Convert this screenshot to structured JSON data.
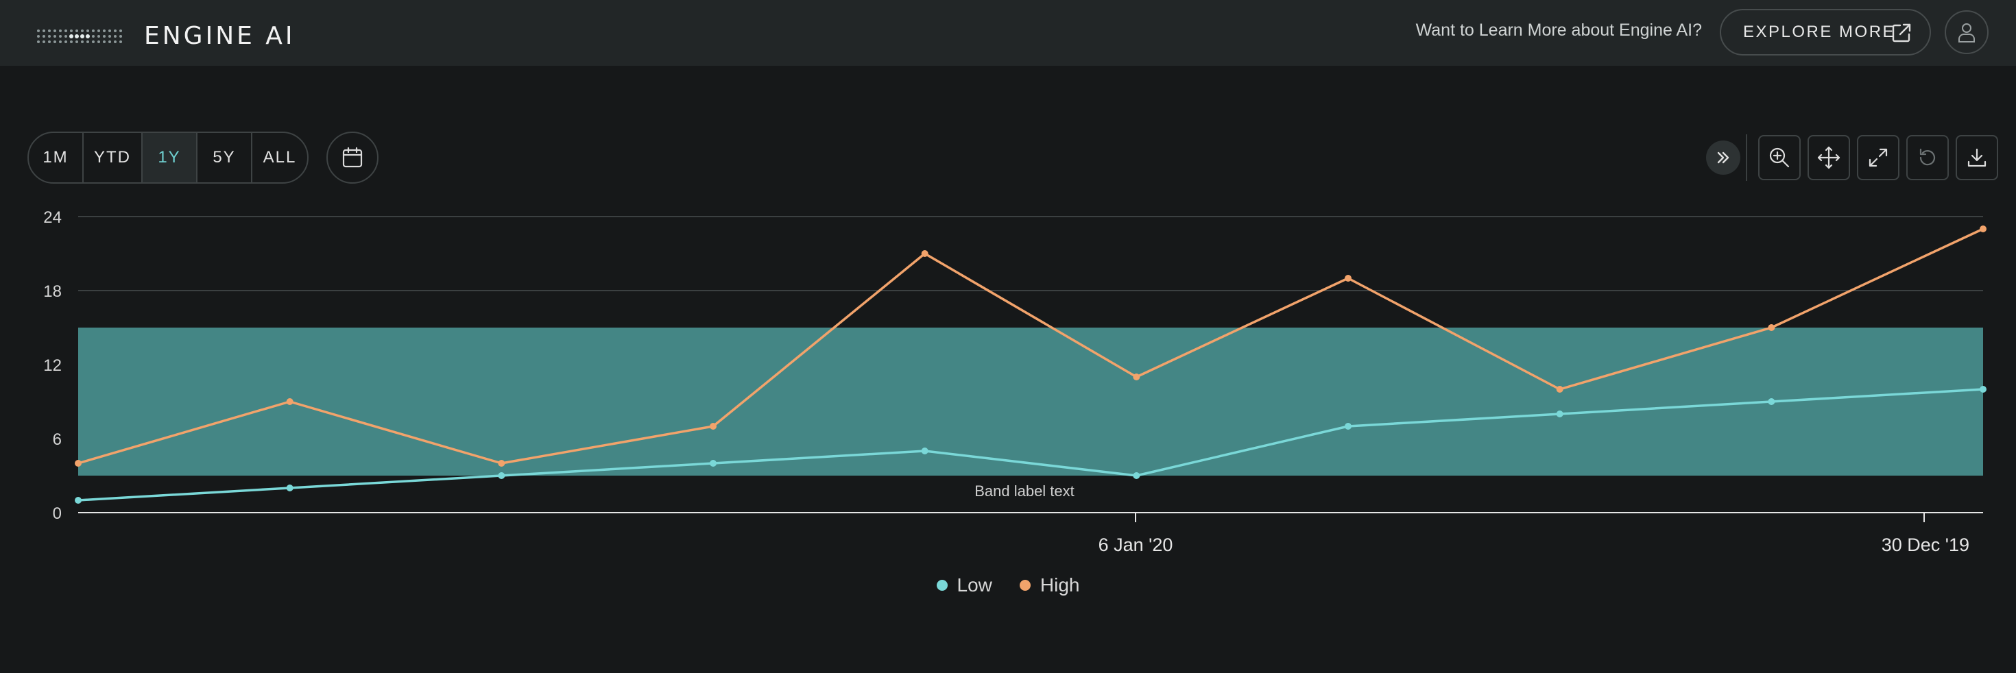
{
  "header": {
    "brand": "ENGINE AI",
    "promo_text": "Want to Learn More about Engine AI?",
    "explore_label": "EXPLORE MORE"
  },
  "toolbar": {
    "ranges": [
      {
        "label": "1M",
        "active": false
      },
      {
        "label": "YTD",
        "active": false
      },
      {
        "label": "1Y",
        "active": true
      },
      {
        "label": "5Y",
        "active": false
      },
      {
        "label": "ALL",
        "active": false
      }
    ],
    "tools": [
      "collapse-icon",
      "zoom-in-icon",
      "pan-icon",
      "expand-icon",
      "reset-icon",
      "download-icon"
    ]
  },
  "colors": {
    "low": "#7ad8d8",
    "high": "#f2a36b",
    "band": "#448685",
    "accent": "#6fd0d0"
  },
  "chart_data": {
    "type": "line",
    "yticks": [
      0,
      6,
      12,
      18,
      24
    ],
    "ylim": [
      0,
      24
    ],
    "x_tick_labels": [
      "6 Jan '20",
      "30 Dec '19"
    ],
    "band": {
      "from": 3,
      "to": 15,
      "label": "Band label text"
    },
    "series": [
      {
        "name": "Low",
        "values": [
          1,
          2,
          3,
          4,
          5,
          3,
          7,
          8,
          9,
          10
        ]
      },
      {
        "name": "High",
        "values": [
          4,
          9,
          4,
          7,
          21,
          11,
          19,
          10,
          15,
          23
        ]
      }
    ],
    "legend": "bottom-center",
    "grid": true
  }
}
